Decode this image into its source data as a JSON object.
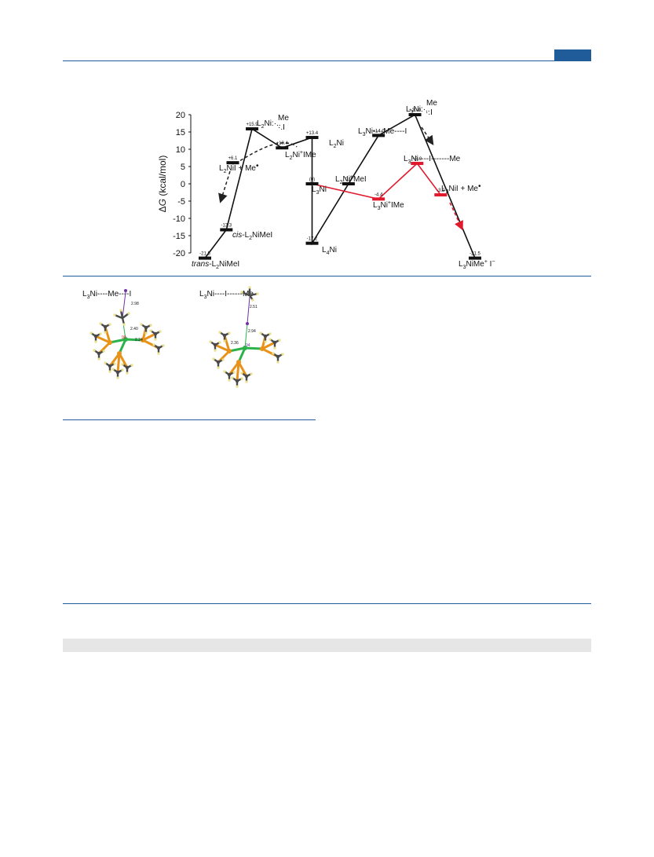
{
  "colors": {
    "accent": "#1f5c99",
    "red": "#e0192c",
    "black": "#111111",
    "dash": "#222222",
    "carbon": "#4a4a4a",
    "phosphorus": "#e8921a",
    "hydrogen": "#e8e08a",
    "nickel": "#2bb34a",
    "iodine": "#7030a0"
  },
  "chart_data": {
    "type": "line",
    "title": "",
    "ylabel_prefix": "Δ",
    "ylabel_var": "G",
    "ylabel_unit": "(kcal/mol)",
    "ylim": [
      -20,
      20
    ],
    "yticks": [
      "20",
      "15",
      "10",
      "5",
      "0",
      "-5",
      "-10",
      "-15",
      "-20"
    ],
    "series": [
      {
        "values": [
          {
            "x": 1.0,
            "y": -21.5
          },
          {
            "x": 2.0,
            "y": -13.3
          },
          {
            "x": 3.2,
            "y": 15.9
          },
          {
            "x": 4.6,
            "y": 10.4
          },
          {
            "x": 6.0,
            "y": 13.4
          },
          {
            "x": 6.0,
            "y": 0.0
          },
          {
            "x": 6.0,
            "y": -17.2
          },
          {
            "x": 7.7,
            "y": 0.0
          },
          {
            "x": 9.1,
            "y": 14.0
          },
          {
            "x": 10.8,
            "y": 20.0
          },
          {
            "x": 13.6,
            "y": -21.5
          }
        ]
      },
      {
        "values": [
          {
            "x": 6.0,
            "y": 0.0
          },
          {
            "x": 9.1,
            "y": -4.4
          },
          {
            "x": 10.9,
            "y": 5.9
          },
          {
            "x": 12.0,
            "y": -3.2
          }
        ]
      }
    ],
    "levels": [
      {
        "value": "-21.5"
      },
      {
        "value": "-13.3"
      },
      {
        "value": "+15.9"
      },
      {
        "value": "+10.4"
      },
      {
        "value": "+13.4"
      },
      {
        "value": "(0)"
      },
      {
        "value": "-17.2"
      },
      {
        "value": "0.0"
      },
      {
        "value": "+14.0"
      },
      {
        "value": "+20.0"
      },
      {
        "value": "-21.5"
      },
      {
        "value": "-4.4"
      },
      {
        "value": "+5.9"
      },
      {
        "value": "-3.2"
      },
      {
        "value": "+6.1"
      }
    ],
    "species_labels": {
      "trans": {
        "italic": "trans",
        "rest": "-L",
        "sub": "2",
        "tail": "NiMeI"
      },
      "cis": {
        "italic": "cis",
        "rest": "-L",
        "sub": "2",
        "tail": "NiMeI"
      },
      "L2NiMeI_ts": {
        "a": "L",
        "sub": "2",
        "b": "Ni",
        "top": "Me",
        "bottom": "I"
      },
      "L2NiIMe": {
        "a": "L",
        "sub": "2",
        "b": "Ni",
        "sup": "+",
        "c": "IMe"
      },
      "L2Ni": {
        "a": "L",
        "sub": "2",
        "b": "Ni"
      },
      "L3Ni": {
        "a": "L",
        "sub": "3",
        "b": "Ni"
      },
      "L4Ni": {
        "a": "L",
        "sub": "4",
        "b": "Ni"
      },
      "L2NiMeI_complex": {
        "a": "L",
        "sub": "2",
        "b": "Ni",
        "sup": "+",
        "c": "MeI"
      },
      "L3Ni_Me_I": {
        "a": "L",
        "sub": "3",
        "b": "Ni",
        "c": "----Me----I"
      },
      "L3Ni_top": {
        "a": "L",
        "sub": "3",
        "b": "Ni",
        "top": "Me",
        "bottom": "I"
      },
      "L3Ni_I_Me": {
        "a": "L",
        "sub": "3",
        "b": "Ni",
        "c": "----I-------Me"
      },
      "L3NiIMe": {
        "a": "L",
        "sub": "3",
        "b": "Ni",
        "sup": "+",
        "c": "IMe"
      },
      "L3NiI_Me": {
        "a": "L",
        "sub": "3",
        "b": "NiI + Me",
        "dot": "•"
      },
      "L2NiI_Me": {
        "a": "L",
        "sub": "2",
        "b": "NiI + Me",
        "dot": "•"
      },
      "L3NiMe_I": {
        "a": "L",
        "sub": "3",
        "b": "NiMe",
        "sup": "+",
        "c": " I",
        "sup2": "−"
      }
    }
  },
  "structures": [
    {
      "label": {
        "a": "L",
        "sub": "3",
        "b": "Ni----Me----I"
      },
      "distances": [
        "2.98",
        "2.40",
        "2.24"
      ],
      "angle": "90"
    },
    {
      "label": {
        "a": "L",
        "sub": "3",
        "b": "Ni----I------Me"
      },
      "distances": [
        "2.51",
        "2.94",
        "2.36"
      ],
      "angle": "94"
    }
  ]
}
